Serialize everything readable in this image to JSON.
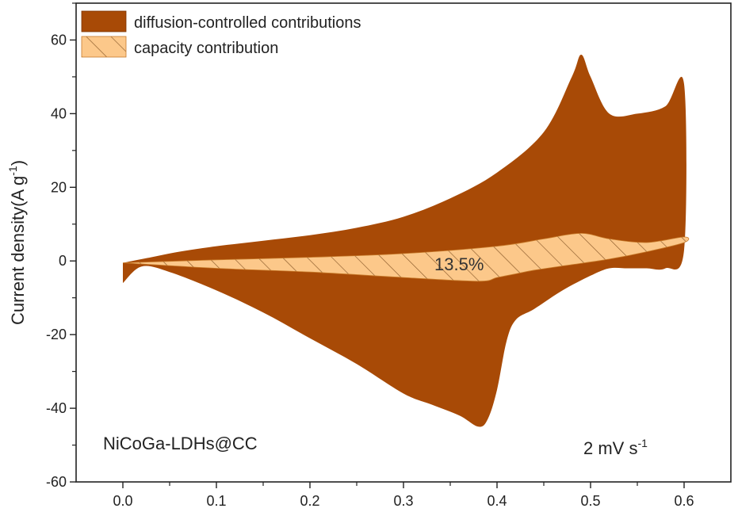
{
  "chart_data": {
    "type": "area",
    "xlabel": "",
    "ylabel_main": "Current density(A g",
    "ylabel_sup": "-1",
    "ylabel_close": ")",
    "xlim": [
      -0.05,
      0.65
    ],
    "ylim": [
      -60,
      70
    ],
    "x_ticks": [
      0.0,
      0.1,
      0.2,
      0.3,
      0.4,
      0.5,
      0.6
    ],
    "x_tick_labels": [
      "0.0",
      "0.1",
      "0.2",
      "0.3",
      "0.4",
      "0.5",
      "0.6"
    ],
    "y_ticks": [
      -60,
      -40,
      -20,
      0,
      20,
      40,
      60
    ],
    "y_tick_labels": [
      "-60",
      "-40",
      "-20",
      "0",
      "20",
      "40",
      "60"
    ],
    "grid": false,
    "legend_placement": "top-left",
    "colors": {
      "diffusion_fill": "#a84a06",
      "capacity_fill": "#fcc88a",
      "hatch": "#8a5a2a",
      "axis": "#222222"
    },
    "series": [
      {
        "name": "diffusion-controlled contributions",
        "style": "solid",
        "upper": [
          [
            0.0,
            -0.5
          ],
          [
            0.03,
            1
          ],
          [
            0.06,
            2.5
          ],
          [
            0.1,
            4
          ],
          [
            0.15,
            5.5
          ],
          [
            0.2,
            7
          ],
          [
            0.25,
            9
          ],
          [
            0.3,
            12
          ],
          [
            0.35,
            17
          ],
          [
            0.4,
            24
          ],
          [
            0.45,
            35
          ],
          [
            0.48,
            50
          ],
          [
            0.49,
            56
          ],
          [
            0.5,
            50
          ],
          [
            0.52,
            40
          ],
          [
            0.55,
            40
          ],
          [
            0.58,
            42
          ],
          [
            0.6,
            48
          ]
        ],
        "lower": [
          [
            0.6,
            3
          ],
          [
            0.58,
            -2
          ],
          [
            0.56,
            -2
          ],
          [
            0.54,
            -2
          ],
          [
            0.52,
            -2
          ],
          [
            0.5,
            -4
          ],
          [
            0.47,
            -8
          ],
          [
            0.44,
            -13
          ],
          [
            0.42,
            -16
          ],
          [
            0.41,
            -22
          ],
          [
            0.4,
            -35
          ],
          [
            0.39,
            -43
          ],
          [
            0.38,
            -45
          ],
          [
            0.36,
            -42
          ],
          [
            0.33,
            -39
          ],
          [
            0.3,
            -36
          ],
          [
            0.25,
            -28
          ],
          [
            0.2,
            -21
          ],
          [
            0.15,
            -14
          ],
          [
            0.1,
            -8
          ],
          [
            0.05,
            -3
          ],
          [
            0.02,
            -1.5
          ],
          [
            0.0,
            -6
          ]
        ]
      },
      {
        "name": "capacity contribution",
        "style": "hatched",
        "upper": [
          [
            0.0,
            -0.5
          ],
          [
            0.1,
            0.3
          ],
          [
            0.2,
            1
          ],
          [
            0.3,
            2
          ],
          [
            0.4,
            4
          ],
          [
            0.45,
            6
          ],
          [
            0.49,
            7.5
          ],
          [
            0.52,
            6
          ],
          [
            0.56,
            5
          ],
          [
            0.6,
            6.5
          ]
        ],
        "lower": [
          [
            0.6,
            5
          ],
          [
            0.56,
            2.5
          ],
          [
            0.52,
            0.5
          ],
          [
            0.48,
            -1
          ],
          [
            0.44,
            -2.5
          ],
          [
            0.42,
            -3.5
          ],
          [
            0.4,
            -4.5
          ],
          [
            0.38,
            -5.5
          ],
          [
            0.3,
            -4.5
          ],
          [
            0.2,
            -3
          ],
          [
            0.1,
            -2
          ],
          [
            0.0,
            -0.5
          ]
        ]
      }
    ],
    "annotations": {
      "percentage": "13.5%",
      "sample": "NiCoGa-LDHs@CC",
      "scan_rate_main": "2 mV s",
      "scan_rate_sup": "-1"
    }
  }
}
